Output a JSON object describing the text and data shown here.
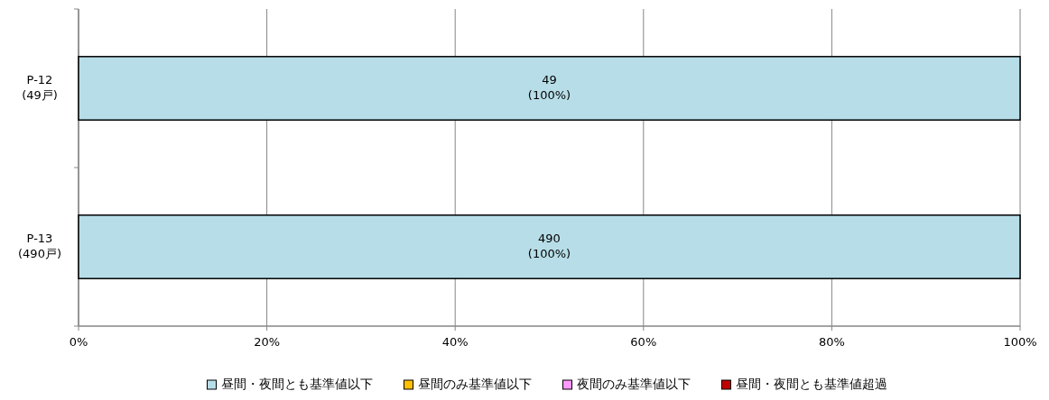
{
  "chart_data": {
    "type": "bar",
    "orientation": "horizontal",
    "stacked": true,
    "categories": [
      "P-12\n(49戸)",
      "P-13\n(490戸)"
    ],
    "series": [
      {
        "name": "昼間・夜間とも基準値以下",
        "color": "#b7dee8",
        "values": [
          100,
          100
        ],
        "value_labels": [
          "49\n(100%)",
          "490\n(100%)"
        ]
      },
      {
        "name": "昼間のみ基準値以下",
        "color": "#ffc000",
        "values": [
          0,
          0
        ]
      },
      {
        "name": "夜間のみ基準値以下",
        "color": "#ff99ff",
        "values": [
          0,
          0
        ]
      },
      {
        "name": "昼間・夜間とも基準値超過",
        "color": "#c00000",
        "values": [
          0,
          0
        ]
      }
    ],
    "xlim": [
      0,
      100
    ],
    "xticks": [
      {
        "value": 0,
        "label": "0%"
      },
      {
        "value": 20,
        "label": "20%"
      },
      {
        "value": 40,
        "label": "40%"
      },
      {
        "value": 60,
        "label": "60%"
      },
      {
        "value": 80,
        "label": "80%"
      },
      {
        "value": 100,
        "label": "100%"
      }
    ],
    "grid": "x",
    "legend": "bottom"
  }
}
